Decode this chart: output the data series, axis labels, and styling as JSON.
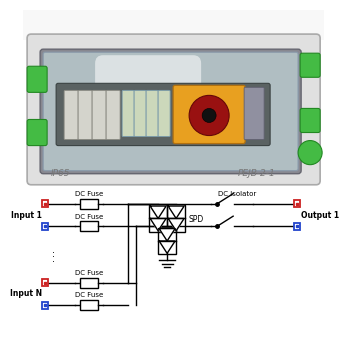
{
  "ip65_text": "IP65",
  "model_text": "PEJB-2-1",
  "line_color": "#000000",
  "label_input1": "Input 1",
  "label_inputN": "Input N",
  "label_output1": "Output 1",
  "label_dc_fuse": "DC Fuse",
  "label_dc_isolator": "DC Isolator",
  "label_spd": "SPD",
  "box_outer_fc": "#e0e0e0",
  "box_outer_ec": "#aaaaaa",
  "box_top_fc": "#f5f5f5",
  "glass_fc": "#b8c8cc",
  "glass_ec": "#8899aa",
  "tray_fc": "#5a6262",
  "tray_ec": "#3a4242",
  "green_fc": "#44bb44",
  "green_ec": "#228822",
  "orange_fc": "#e8a020",
  "orange_ec": "#b07010",
  "handle_fc": "#991111",
  "handle_ec": "#660808",
  "knob_fc": "#111111",
  "dev_fc": "#d4d4cc",
  "dev_ec": "#888880",
  "fuse_dev_fc": "#ccd8bb",
  "fuse_dev_ec": "#7799aa",
  "side_fc": "#9090a0",
  "side_ec": "#606070",
  "refl_fc": "#ffffff"
}
